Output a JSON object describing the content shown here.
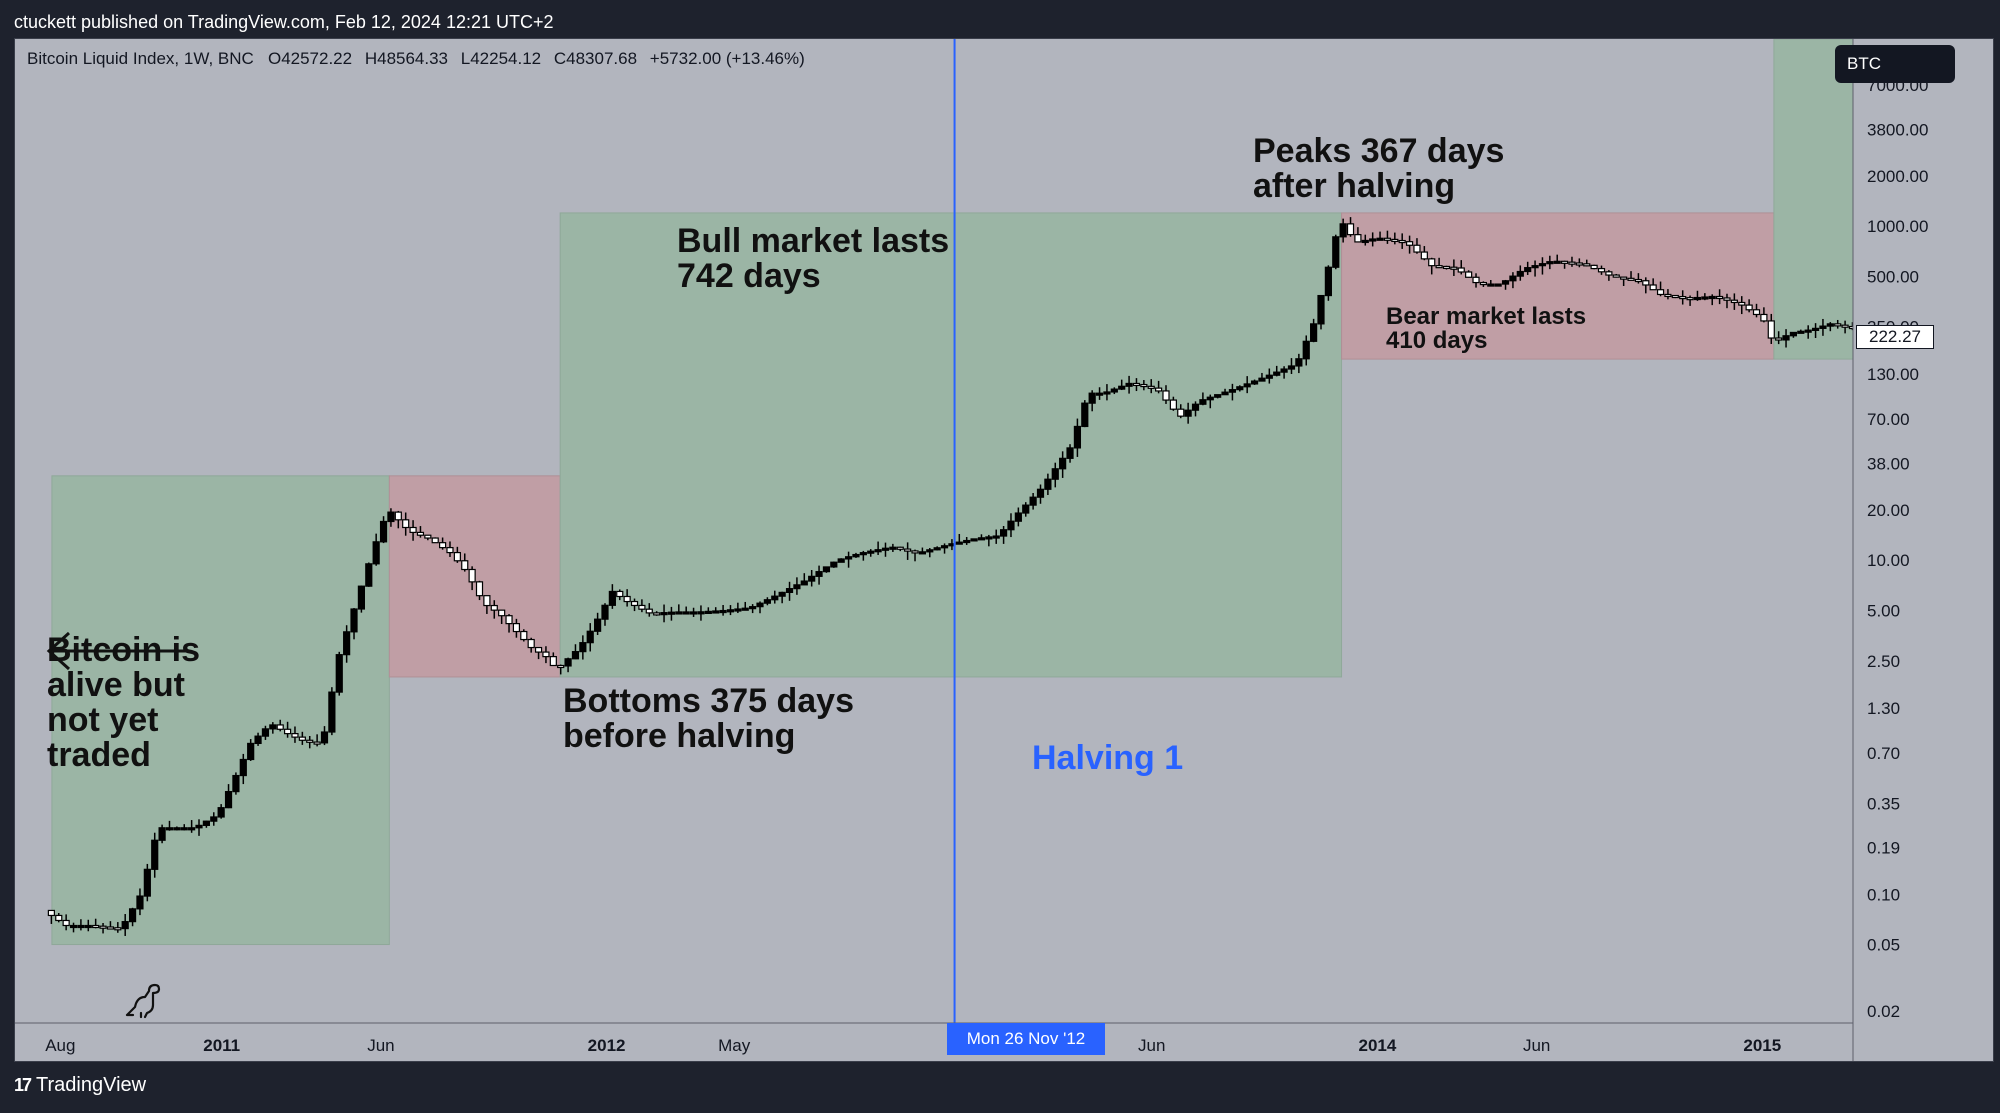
{
  "header": {
    "published_by": "ctuckett published on TradingView.com, Feb 12, 2024 12:21 UTC+2"
  },
  "legend": {
    "symbol": "Bitcoin Liquid Index, 1W, BNC",
    "o_key": "O",
    "o_val": "42572.22",
    "h_key": "H",
    "h_val": "48564.33",
    "l_key": "L",
    "l_val": "42254.12",
    "c_key": "C",
    "c_val": "48307.68",
    "change": "+5732.00 (+13.46%)"
  },
  "symbol_badge": "BTC",
  "last_price": "222.27",
  "crosshair_date": "Mon 26 Nov '12",
  "footer_brand": "TradingView",
  "annotations": {
    "alive": "Bitcoin is\nalive but\nnot yet\ntraded",
    "bottoms": "Bottoms 375 days\nbefore halving",
    "bull": "Bull market lasts\n742 days",
    "peaks": "Peaks 367 days\nafter halving",
    "bear": "Bear market lasts\n410 days",
    "halving": "Halving 1"
  },
  "colors": {
    "bull_zone": "#9bb5a5",
    "bear_zone": "#c09ea5",
    "halving_line": "#2962ff",
    "candle": "#000000",
    "background": "#b2b5be"
  },
  "chart_data": {
    "type": "candlestick",
    "y_scale": "log",
    "y_ticks": [
      "0.02",
      "0.05",
      "0.10",
      "0.19",
      "0.35",
      "0.70",
      "1.30",
      "2.50",
      "5.00",
      "10.00",
      "20.00",
      "38.00",
      "70.00",
      "130.00",
      "250.00",
      "500.00",
      "1000.00",
      "2000.00",
      "3800.00",
      "7000.00"
    ],
    "x_ticks": [
      {
        "label": "Aug",
        "date": "2010-08-01",
        "bold": false
      },
      {
        "label": "2011",
        "date": "2011-01-01",
        "bold": true
      },
      {
        "label": "Jun",
        "date": "2011-06-01",
        "bold": false
      },
      {
        "label": "2012",
        "date": "2012-01-01",
        "bold": true
      },
      {
        "label": "May",
        "date": "2012-05-01",
        "bold": false
      },
      {
        "label": "Jun",
        "date": "2013-06-01",
        "bold": false
      },
      {
        "label": "2014",
        "date": "2014-01-01",
        "bold": true
      },
      {
        "label": "Jun",
        "date": "2014-06-01",
        "bold": false
      },
      {
        "label": "2015",
        "date": "2015-01-01",
        "bold": true
      }
    ],
    "x_range": [
      "2010-06-19",
      "2015-03-28"
    ],
    "halving_date": "2012-11-26",
    "zones": [
      {
        "kind": "bull",
        "start": "2010-07-24",
        "end": "2011-06-09",
        "low": 0.05,
        "high": 32
      },
      {
        "kind": "bear",
        "start": "2011-06-09",
        "end": "2011-11-18",
        "low": 2.0,
        "high": 32
      },
      {
        "kind": "bull",
        "start": "2011-11-18",
        "end": "2013-11-28",
        "low": 2.0,
        "high": 1200
      },
      {
        "kind": "bear",
        "start": "2013-11-28",
        "end": "2015-01-12",
        "low": 160,
        "high": 1200
      },
      {
        "kind": "bull",
        "start": "2015-01-12",
        "end": "2015-03-28",
        "low": 160,
        "high": 20000
      }
    ],
    "price_series": [
      [
        "2010-07-20",
        0.08
      ],
      [
        "2010-08-10",
        0.065
      ],
      [
        "2010-09-01",
        0.065
      ],
      [
        "2010-10-01",
        0.062
      ],
      [
        "2010-10-20",
        0.1
      ],
      [
        "2010-11-05",
        0.25
      ],
      [
        "2010-11-20",
        0.25
      ],
      [
        "2010-12-10",
        0.25
      ],
      [
        "2011-01-01",
        0.3
      ],
      [
        "2011-02-01",
        0.8
      ],
      [
        "2011-02-20",
        1.05
      ],
      [
        "2011-03-10",
        0.9
      ],
      [
        "2011-03-25",
        0.82
      ],
      [
        "2011-04-10",
        0.8
      ],
      [
        "2011-04-25",
        2.6
      ],
      [
        "2011-05-20",
        8
      ],
      [
        "2011-06-05",
        16
      ],
      [
        "2011-06-12",
        20
      ],
      [
        "2011-07-01",
        15
      ],
      [
        "2011-07-20",
        13.5
      ],
      [
        "2011-08-10",
        11
      ],
      [
        "2011-08-25",
        8.5
      ],
      [
        "2011-09-10",
        5.5
      ],
      [
        "2011-09-25",
        4.8
      ],
      [
        "2011-10-10",
        3.8
      ],
      [
        "2011-10-25",
        3.0
      ],
      [
        "2011-11-10",
        2.6
      ],
      [
        "2011-11-18",
        2.2
      ],
      [
        "2011-12-10",
        3.0
      ],
      [
        "2011-12-25",
        4.2
      ],
      [
        "2012-01-10",
        6.5
      ],
      [
        "2012-01-25",
        5.6
      ],
      [
        "2012-02-15",
        4.8
      ],
      [
        "2012-03-10",
        4.9
      ],
      [
        "2012-04-01",
        4.9
      ],
      [
        "2012-04-25",
        5.0
      ],
      [
        "2012-05-20",
        5.2
      ],
      [
        "2012-06-10",
        6.0
      ],
      [
        "2012-07-10",
        7.5
      ],
      [
        "2012-08-10",
        10
      ],
      [
        "2012-09-01",
        11
      ],
      [
        "2012-10-01",
        12
      ],
      [
        "2012-10-25",
        11
      ],
      [
        "2012-11-26",
        12.5
      ],
      [
        "2012-12-20",
        13.5
      ],
      [
        "2013-01-10",
        14
      ],
      [
        "2013-01-25",
        18
      ],
      [
        "2013-02-20",
        27
      ],
      [
        "2013-03-20",
        48
      ],
      [
        "2013-04-05",
        100
      ],
      [
        "2013-04-20",
        100
      ],
      [
        "2013-05-15",
        115
      ],
      [
        "2013-06-10",
        105
      ],
      [
        "2013-07-01",
        72
      ],
      [
        "2013-07-20",
        90
      ],
      [
        "2013-08-20",
        105
      ],
      [
        "2013-09-20",
        125
      ],
      [
        "2013-10-20",
        150
      ],
      [
        "2013-11-05",
        260
      ],
      [
        "2013-11-20",
        600
      ],
      [
        "2013-11-30",
        1100
      ],
      [
        "2013-12-15",
        800
      ],
      [
        "2014-01-05",
        850
      ],
      [
        "2014-02-01",
        800
      ],
      [
        "2014-02-25",
        580
      ],
      [
        "2014-03-20",
        560
      ],
      [
        "2014-04-10",
        450
      ],
      [
        "2014-05-01",
        450
      ],
      [
        "2014-05-25",
        560
      ],
      [
        "2014-06-20",
        620
      ],
      [
        "2014-07-20",
        590
      ],
      [
        "2014-08-15",
        500
      ],
      [
        "2014-09-10",
        470
      ],
      [
        "2014-09-30",
        390
      ],
      [
        "2014-10-25",
        370
      ],
      [
        "2014-11-20",
        380
      ],
      [
        "2014-12-15",
        340
      ],
      [
        "2015-01-05",
        280
      ],
      [
        "2015-01-15",
        200
      ],
      [
        "2015-02-01",
        230
      ],
      [
        "2015-02-20",
        240
      ],
      [
        "2015-03-10",
        260
      ],
      [
        "2015-03-25",
        250
      ]
    ]
  }
}
